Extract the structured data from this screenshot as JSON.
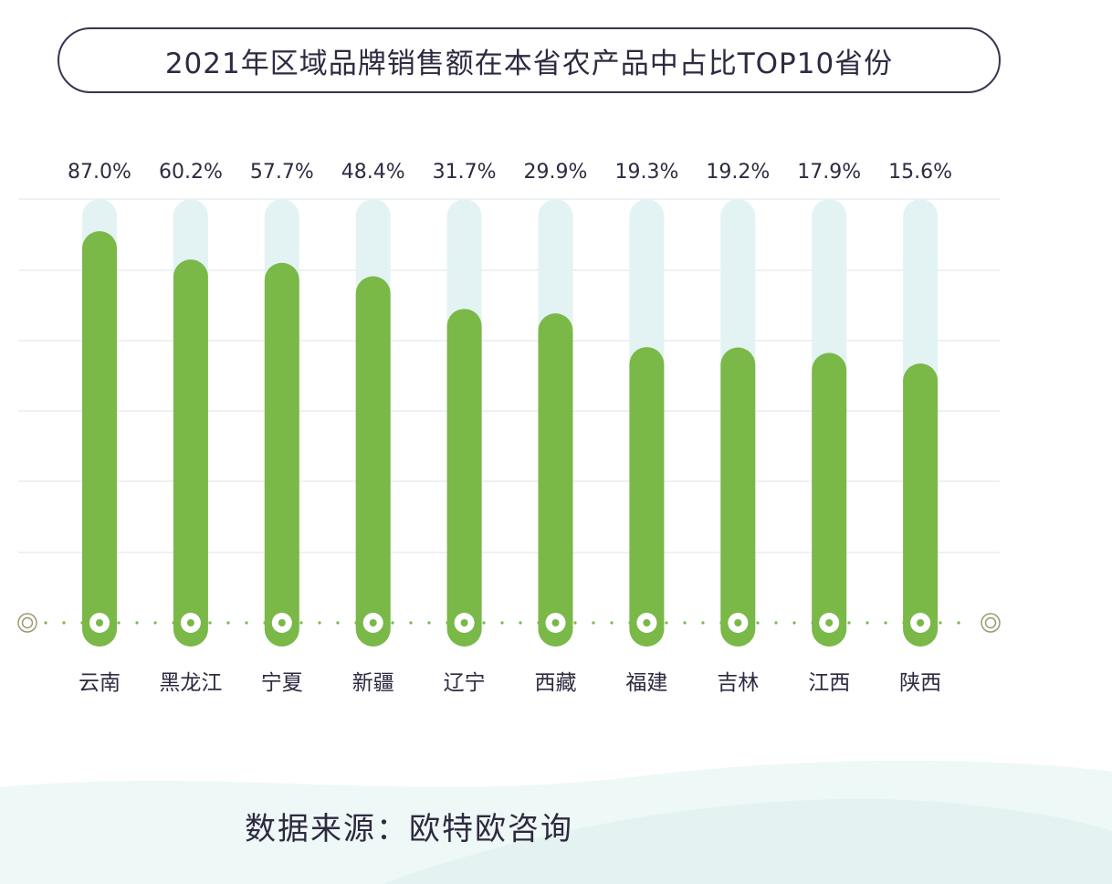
{
  "title": "2021年区域品牌销售额在本省农产品中占比TOP10省份",
  "source": "数据来源：欧特欧咨询",
  "colors": {
    "bar": "#7ab848",
    "track": "#e3f3f3",
    "grid": "#e6eef0",
    "axis_dots": "#7ab848",
    "text": "#2e2a40"
  },
  "chart_data": {
    "type": "bar",
    "title": "2021年区域品牌销售额在本省农产品中占比TOP10省份",
    "categories": [
      "云南",
      "黑龙江",
      "宁夏",
      "新疆",
      "辽宁",
      "西藏",
      "福建",
      "吉林",
      "江西",
      "陕西"
    ],
    "values": [
      87.0,
      60.2,
      57.7,
      48.4,
      31.7,
      29.9,
      19.3,
      19.2,
      17.9,
      15.6
    ],
    "value_labels": [
      "87.0%",
      "60.2%",
      "57.7%",
      "48.4%",
      "31.7%",
      "29.9%",
      "19.3%",
      "19.2%",
      "17.9%",
      "15.6%"
    ],
    "unit": "%",
    "grid": true,
    "legend": "none"
  }
}
